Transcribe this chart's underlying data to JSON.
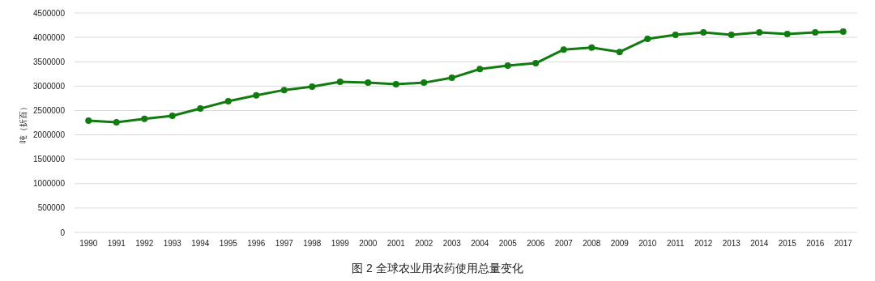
{
  "chart_data": {
    "type": "line",
    "title": "图 2  全球农业用农药使用总量变化",
    "ylabel": "吨（折百）",
    "categories": [
      "1990",
      "1991",
      "1992",
      "1993",
      "1994",
      "1995",
      "1996",
      "1997",
      "1998",
      "1999",
      "2000",
      "2001",
      "2002",
      "2003",
      "2004",
      "2005",
      "2006",
      "2007",
      "2008",
      "2009",
      "2010",
      "2011",
      "2012",
      "2013",
      "2014",
      "2015",
      "2016",
      "2017"
    ],
    "series": [
      {
        "color": "#107c10",
        "values": [
          2290000,
          2260000,
          2330000,
          2390000,
          2540000,
          2690000,
          2810000,
          2920000,
          2990000,
          3090000,
          3070000,
          3040000,
          3070000,
          3170000,
          3350000,
          3420000,
          3470000,
          3750000,
          3790000,
          3700000,
          3970000,
          4050000,
          4100000,
          4050000,
          4100000,
          4070000,
          4100000,
          4120000
        ]
      }
    ],
    "ylim": [
      0,
      4500000
    ],
    "yticks": [
      0,
      500000,
      1000000,
      1500000,
      2000000,
      2500000,
      3000000,
      3500000,
      4000000,
      4500000
    ],
    "grid": "y",
    "marker": "circle",
    "line_style": "solid"
  }
}
